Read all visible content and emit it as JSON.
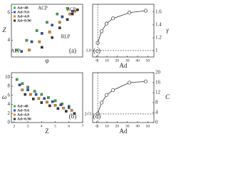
{
  "chart_data": [
    {
      "type": "scatter",
      "panel_label": "(a)",
      "x_label": "φ",
      "y_label": "Z",
      "xlim": [
        0.38,
        0.66
      ],
      "ylim": [
        2.8,
        6.6
      ],
      "yticks": [
        4,
        6
      ],
      "legend": "upper left",
      "annotations": [
        "ACP",
        "RCP",
        "RLP",
        "ALP"
      ],
      "series": [
        {
          "name": "Ad=48",
          "color": "#3cb043",
          "x": [
            0.4,
            0.44,
            0.48,
            0.52,
            0.56,
            0.6
          ],
          "y": [
            3.3,
            4.0,
            4.7,
            5.3,
            5.9,
            6.3
          ]
        },
        {
          "name": "Ad=9.6",
          "color": "#2b4fc9",
          "x": [
            0.42,
            0.46,
            0.5,
            0.54,
            0.58,
            0.62
          ],
          "y": [
            3.2,
            3.9,
            4.5,
            5.1,
            5.7,
            6.1
          ]
        },
        {
          "name": "Ad=4.8",
          "color": "#e8841c",
          "x": [
            0.45,
            0.49,
            0.53,
            0.57,
            0.61,
            0.63
          ],
          "y": [
            3.3,
            3.9,
            4.6,
            5.3,
            5.9,
            6.1
          ]
        },
        {
          "name": "Ad=0.96",
          "color": "#333333",
          "x": [
            0.5,
            0.54,
            0.57,
            0.6,
            0.62,
            0.64
          ],
          "y": [
            3.5,
            4.2,
            4.9,
            5.5,
            5.9,
            6.2
          ]
        }
      ]
    },
    {
      "type": "line",
      "panel_label": "(c)",
      "x_label": "Ad",
      "y_label": "γ",
      "xlim": [
        -4,
        56
      ],
      "xticks": [
        0,
        1,
        10,
        20,
        30,
        40,
        50
      ],
      "y2lim": [
        0.9,
        1.72
      ],
      "y2ticks": [
        1.0,
        {
          "value": 1.2,
          "label": "1.2"
        },
        1.4,
        1.6
      ],
      "annotation": "1.0",
      "series": [
        {
          "name": "γ",
          "color": "#333333",
          "axis": "y2",
          "x": [
            0.96,
            4.8,
            9.6,
            16,
            32,
            48
          ],
          "y": [
            1.12,
            1.3,
            1.42,
            1.5,
            1.59,
            1.62
          ]
        }
      ]
    },
    {
      "type": "scatter",
      "panel_label": "(b)",
      "x_label": "Z",
      "y_label": "ω",
      "xlim": [
        1.8,
        7
      ],
      "xticks": [
        2,
        3,
        4,
        5,
        6,
        7
      ],
      "ylim": [
        0,
        11
      ],
      "yticks": [
        0,
        2,
        4,
        6,
        8,
        10
      ],
      "legend": "lower left",
      "series": [
        {
          "name": "Ad=48",
          "color": "#3cb043",
          "x": [
            2.2,
            2.6,
            3.0,
            3.5,
            4.0,
            4.5,
            5.0,
            5.5,
            6.0
          ],
          "y": [
            9.5,
            8.6,
            7.8,
            6.9,
            6.2,
            5.5,
            4.8,
            4.1,
            3.6
          ]
        },
        {
          "name": "Ad=9.6",
          "color": "#2b4fc9",
          "x": [
            2.4,
            3.0,
            3.6,
            4.2,
            4.8,
            5.4,
            6.0
          ],
          "y": [
            8.3,
            7.2,
            6.2,
            5.3,
            4.6,
            3.9,
            3.3
          ]
        },
        {
          "name": "Ad=4.8",
          "color": "#e8841c",
          "x": [
            2.6,
            3.2,
            3.8,
            4.4,
            5.0,
            5.6,
            6.2
          ],
          "y": [
            7.2,
            6.2,
            5.3,
            4.5,
            3.8,
            3.2,
            2.7
          ]
        },
        {
          "name": "Ad=0.96",
          "color": "#333333",
          "x": [
            2.8,
            3.4,
            4.0,
            4.6,
            5.2,
            5.8,
            6.4
          ],
          "y": [
            6.2,
            5.2,
            4.4,
            3.7,
            3.1,
            2.5,
            2.0
          ]
        }
      ]
    },
    {
      "type": "line",
      "panel_label": "(d)",
      "x_label": "Ad",
      "y_label": "C",
      "xlim": [
        -4,
        56
      ],
      "xticks": [
        0,
        1,
        10,
        20,
        30,
        40,
        50
      ],
      "y2lim": [
        0,
        20
      ],
      "y2ticks": [
        0,
        4,
        8,
        12,
        16,
        20
      ],
      "annotation": "2√3",
      "series": [
        {
          "name": "C",
          "color": "#333333",
          "axis": "y2",
          "x": [
            0.96,
            4.8,
            9.6,
            16,
            32,
            48
          ],
          "y": [
            3.6,
            8,
            11,
            13,
            16,
            16.5
          ]
        }
      ]
    }
  ]
}
